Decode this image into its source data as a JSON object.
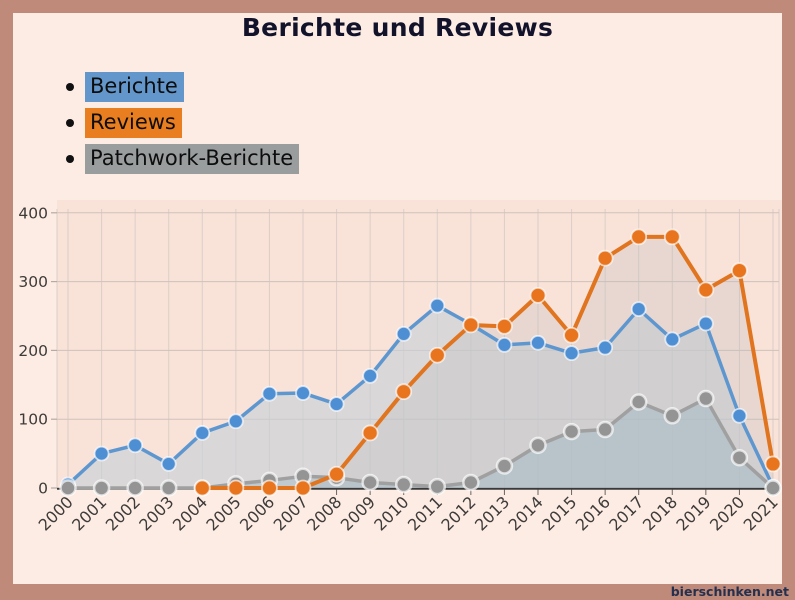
{
  "title": "Berichte und Reviews",
  "frame": {
    "border_color": "#bf8a79",
    "background": "#fcece4",
    "plot_background": "#f9e2d8",
    "grid_color_vertical": "#dccfc8",
    "grid_color_horizontal": "#cfc2bb",
    "axis_color": "#3a3a3a",
    "tick_label_color": "#3f3b39"
  },
  "legend": {
    "items": [
      {
        "label": "Berichte",
        "color": "#6397cb"
      },
      {
        "label": "Reviews",
        "color": "#e87e1f"
      },
      {
        "label": "Patchwork-Berichte",
        "color": "#9a9d9e"
      }
    ]
  },
  "watermark": "bierschinken.net",
  "chart_data": {
    "type": "line",
    "title": "Berichte und Reviews",
    "x": [
      2000,
      2001,
      2002,
      2003,
      2004,
      2005,
      2006,
      2007,
      2008,
      2009,
      2010,
      2011,
      2012,
      2013,
      2014,
      2015,
      2016,
      2017,
      2018,
      2019,
      2020,
      2021
    ],
    "series": [
      {
        "name": "Berichte",
        "color": "#4e8ed3",
        "line_color": "#5e97d0",
        "fill": "rgba(198,208,217,0.62)",
        "values": [
          5,
          50,
          62,
          35,
          80,
          97,
          137,
          138,
          122,
          163,
          224,
          265,
          238,
          208,
          211,
          196,
          204,
          260,
          216,
          239,
          105,
          2
        ]
      },
      {
        "name": "Reviews",
        "color": "#e8741d",
        "line_color": "#e0741f",
        "fill": "rgba(190,190,190,0.30)",
        "values": [
          null,
          null,
          null,
          null,
          0,
          0,
          0,
          0,
          20,
          80,
          140,
          193,
          237,
          235,
          280,
          222,
          334,
          365,
          365,
          288,
          316,
          35
        ]
      },
      {
        "name": "Patchwork-Berichte",
        "color": "#949494",
        "line_color": "#a0a0a0",
        "fill": "rgba(148,180,192,0.38)",
        "values": [
          0,
          0,
          0,
          0,
          0,
          6,
          11,
          17,
          15,
          8,
          5,
          2,
          8,
          32,
          62,
          82,
          85,
          125,
          105,
          130,
          44,
          0
        ]
      }
    ],
    "yticks": [
      0,
      100,
      200,
      300,
      400
    ],
    "ylim": [
      0,
      400
    ],
    "grid": true,
    "legend_position": "top-left"
  }
}
